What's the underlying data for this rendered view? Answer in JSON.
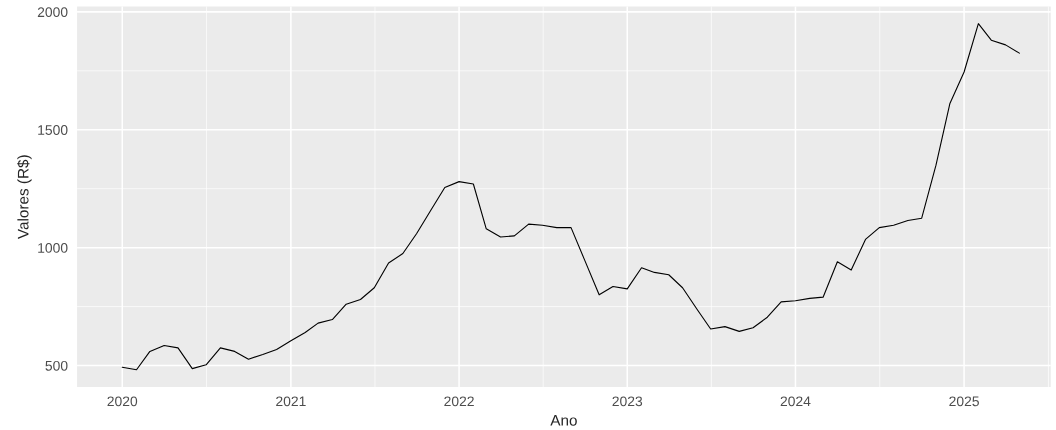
{
  "chart_data": {
    "type": "line",
    "xlabel": "Ano",
    "ylabel": "Valores (R$)",
    "x": [
      "2020-01",
      "2020-02",
      "2020-03",
      "2020-04",
      "2020-05",
      "2020-06",
      "2020-07",
      "2020-08",
      "2020-09",
      "2020-10",
      "2020-11",
      "2020-12",
      "2021-01",
      "2021-02",
      "2021-03",
      "2021-04",
      "2021-05",
      "2021-06",
      "2021-07",
      "2021-08",
      "2021-09",
      "2021-10",
      "2021-11",
      "2021-12",
      "2022-01",
      "2022-02",
      "2022-03",
      "2022-04",
      "2022-05",
      "2022-06",
      "2022-07",
      "2022-08",
      "2022-09",
      "2022-10",
      "2022-11",
      "2022-12",
      "2023-01",
      "2023-02",
      "2023-03",
      "2023-04",
      "2023-05",
      "2023-06",
      "2023-07",
      "2023-08",
      "2023-09",
      "2023-10",
      "2023-11",
      "2023-12",
      "2024-01",
      "2024-02",
      "2024-03",
      "2024-04",
      "2024-05",
      "2024-06",
      "2024-07",
      "2024-08",
      "2024-09",
      "2024-10",
      "2024-11",
      "2024-12",
      "2025-01",
      "2025-02",
      "2025-03",
      "2025-04",
      "2025-05"
    ],
    "series": [
      {
        "color": "#000000",
        "values": [
          493,
          482,
          560,
          585,
          575,
          487,
          503,
          575,
          560,
          527,
          547,
          568,
          605,
          640,
          680,
          695,
          760,
          780,
          830,
          935,
          975,
          1060,
          1160,
          1255,
          1280,
          1270,
          1080,
          1045,
          1050,
          1100,
          1095,
          1085,
          1085,
          945,
          800,
          835,
          825,
          915,
          895,
          885,
          830,
          740,
          655,
          665,
          645,
          660,
          705,
          770,
          775,
          785,
          790,
          940,
          905,
          1035,
          1085,
          1095,
          1115,
          1125,
          1350,
          1610,
          1745,
          1950,
          1880,
          1860,
          1825
        ]
      }
    ],
    "xlim": [
      "2019-09-25",
      "2025-07-08"
    ],
    "ylim": [
      409,
      2023
    ],
    "xticks": [
      "2020",
      "2021",
      "2022",
      "2023",
      "2024",
      "2025"
    ],
    "yticks": [
      500,
      1000,
      1500,
      2000
    ],
    "grid": true,
    "marker": "none",
    "line_style": "solid"
  }
}
